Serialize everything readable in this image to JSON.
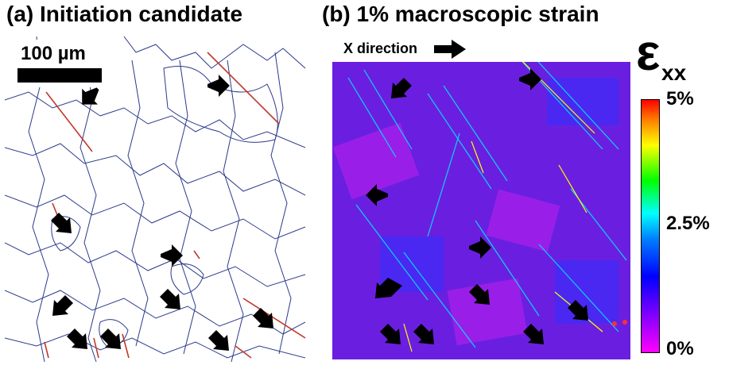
{
  "panel_a": {
    "title": "(a) Initiation candidate",
    "scale_bar_label": "100 µm"
  },
  "panel_b": {
    "title": "(b) 1% macroscopic strain",
    "direction_label": "X direction"
  },
  "colorbar": {
    "symbol": "ε",
    "subscript": "xx",
    "ticks": [
      "5%",
      "2.5%",
      "0%"
    ],
    "colors": [
      "#ff00ff",
      "#0000ff",
      "#0080ff",
      "#00ffff",
      "#00ff00",
      "#ffff00",
      "#ff8000",
      "#ff0000"
    ]
  },
  "colors": {
    "grain_boundary": "#2b3a8c",
    "twin_boundary": "#c0392b",
    "strain_background": "#6a1fe0",
    "arrow": "#000000"
  }
}
